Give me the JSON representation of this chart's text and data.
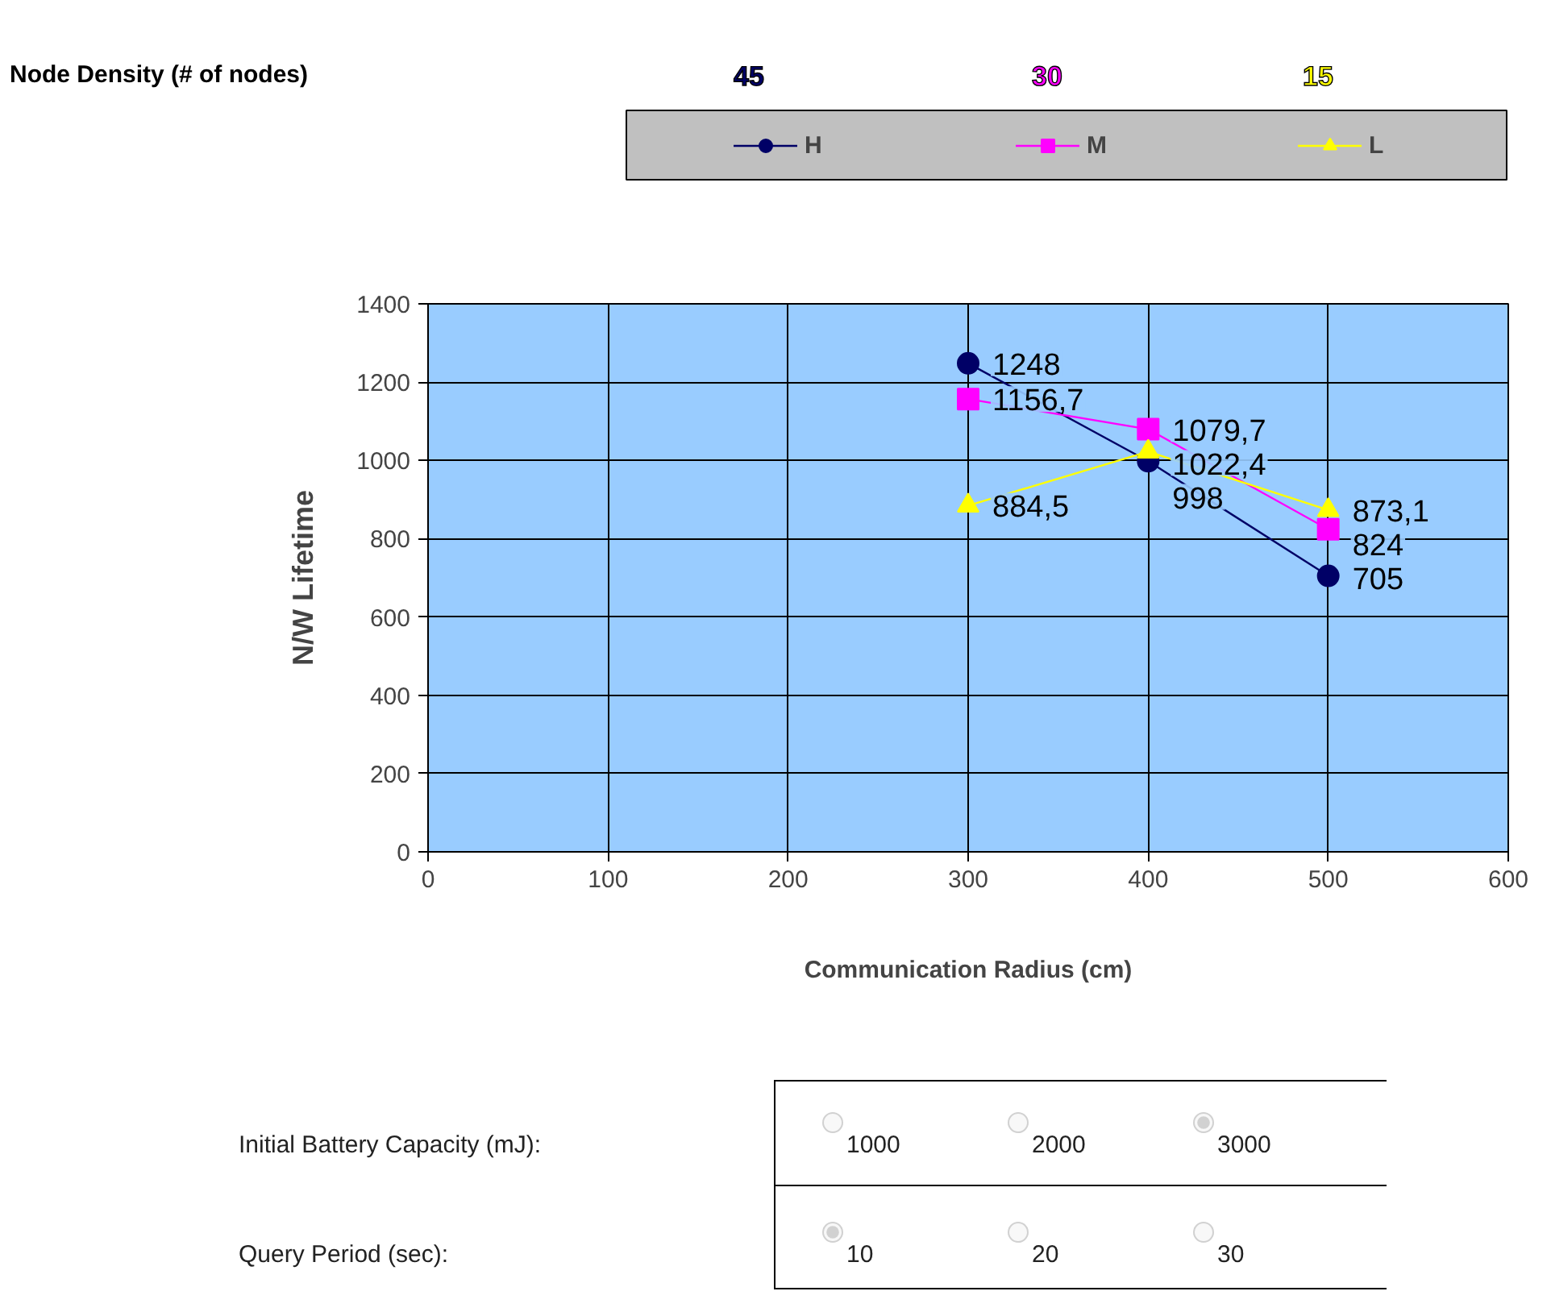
{
  "chart_data": {
    "type": "line",
    "xlabel": "Communication Radius (cm)",
    "ylabel": "N/W Lifetime",
    "legend_title": "Node Density (# of nodes)",
    "x": [
      300,
      400,
      500
    ],
    "xlim": [
      0,
      600
    ],
    "xticks": [
      0,
      100,
      200,
      300,
      400,
      500,
      600
    ],
    "ylim": [
      0,
      1400
    ],
    "yticks": [
      0,
      200,
      400,
      600,
      800,
      1000,
      1200,
      1400
    ],
    "grid": true,
    "legend": "top",
    "line_style": "solid",
    "series": [
      {
        "name": "H",
        "color": "#000066",
        "marker": "circle",
        "values": [
          1248,
          998,
          705
        ],
        "value_labels": [
          "1248",
          "998",
          "705"
        ]
      },
      {
        "name": "M",
        "color": "#ff00ff",
        "marker": "square",
        "values": [
          1156.7,
          1079.7,
          824
        ],
        "value_labels": [
          "1156,7",
          "1079,7",
          "824"
        ]
      },
      {
        "name": "L",
        "color": "#ffff00",
        "marker": "triangle",
        "values": [
          884.5,
          1022.4,
          873.1
        ],
        "value_labels": [
          "884,5",
          "1022,4",
          "873,1"
        ]
      }
    ],
    "annotations": [
      "45",
      "30",
      "15",
      "Initial Battery Capacity (mJ):",
      "1000",
      "2000",
      "3000",
      "Query Period (sec):",
      "10",
      "20",
      "30"
    ]
  }
}
